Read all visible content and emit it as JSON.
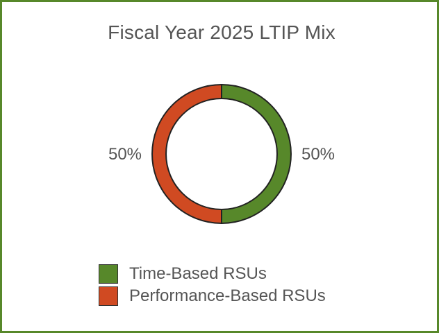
{
  "colors": {
    "border": "#57882a",
    "slice_stroke": "#222222",
    "text": "#555555"
  },
  "chart_data": {
    "type": "pie",
    "variant": "donut",
    "title": "Fiscal Year 2025 LTIP Mix",
    "slices": [
      {
        "label": "Time-Based RSUs",
        "value": 50,
        "display": "50%",
        "color": "#57882a"
      },
      {
        "label": "Performance-Based RSUs",
        "value": 50,
        "display": "50%",
        "color": "#d04a22"
      }
    ],
    "legend_position": "bottom",
    "start_angle": "12 o'clock",
    "direction": "clockwise"
  }
}
